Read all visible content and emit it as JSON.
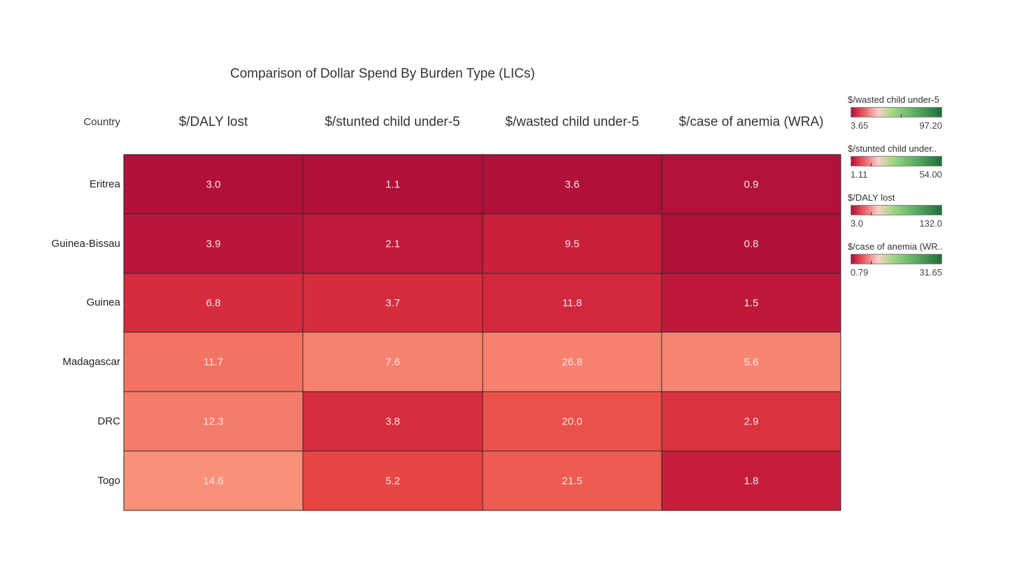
{
  "chart_data": {
    "type": "heatmap",
    "title": "Comparison of Dollar Spend By Burden Type (LICs)",
    "row_header": "Country",
    "columns": [
      "$/DALY lost",
      "$/stunted child under-5",
      "$/wasted child under-5",
      "$/case of anemia (WRA)"
    ],
    "rows": [
      "Eritrea",
      "Guinea-Bissau",
      "Guinea",
      "Madagascar",
      "DRC",
      "Togo"
    ],
    "values": [
      [
        3.0,
        1.1,
        3.6,
        0.9
      ],
      [
        3.9,
        2.1,
        9.5,
        0.8
      ],
      [
        6.8,
        3.7,
        11.8,
        1.5
      ],
      [
        11.7,
        7.6,
        26.8,
        5.6
      ],
      [
        12.3,
        3.8,
        20.0,
        2.9
      ],
      [
        14.6,
        5.2,
        21.5,
        1.8
      ]
    ],
    "labels": [
      [
        "3.0",
        "1.1",
        "3.6",
        "0.9"
      ],
      [
        "3.9",
        "2.1",
        "9.5",
        "0.8"
      ],
      [
        "6.8",
        "3.7",
        "11.8",
        "1.5"
      ],
      [
        "11.7",
        "7.6",
        "26.8",
        "5.6"
      ],
      [
        "12.3",
        "3.8",
        "20.0",
        "2.9"
      ],
      [
        "14.6",
        "5.2",
        "21.5",
        "1.8"
      ]
    ],
    "color_scale": {
      "low": "#b0103a",
      "mid": "#fad0c8",
      "high": "#1e6e3c",
      "mid_light_green": "#a4d887"
    },
    "legends": [
      {
        "title": "$/wasted child under-5",
        "min": "3.65",
        "max": "97.20",
        "min_value": 3.65,
        "max_value": 97.2,
        "column": 2
      },
      {
        "title": "$/stunted child under..",
        "min": "1.11",
        "max": "54.00",
        "min_value": 1.11,
        "max_value": 54.0,
        "column": 1
      },
      {
        "title": "$/DALY lost",
        "min": "3.0",
        "max": "132.0",
        "min_value": 3.0,
        "max_value": 132.0,
        "column": 0
      },
      {
        "title": "$/case of anemia (WR..",
        "min": "0.79",
        "max": "31.65",
        "min_value": 0.79,
        "max_value": 31.65,
        "column": 3
      }
    ],
    "legend_placement": "right",
    "grid": true
  }
}
